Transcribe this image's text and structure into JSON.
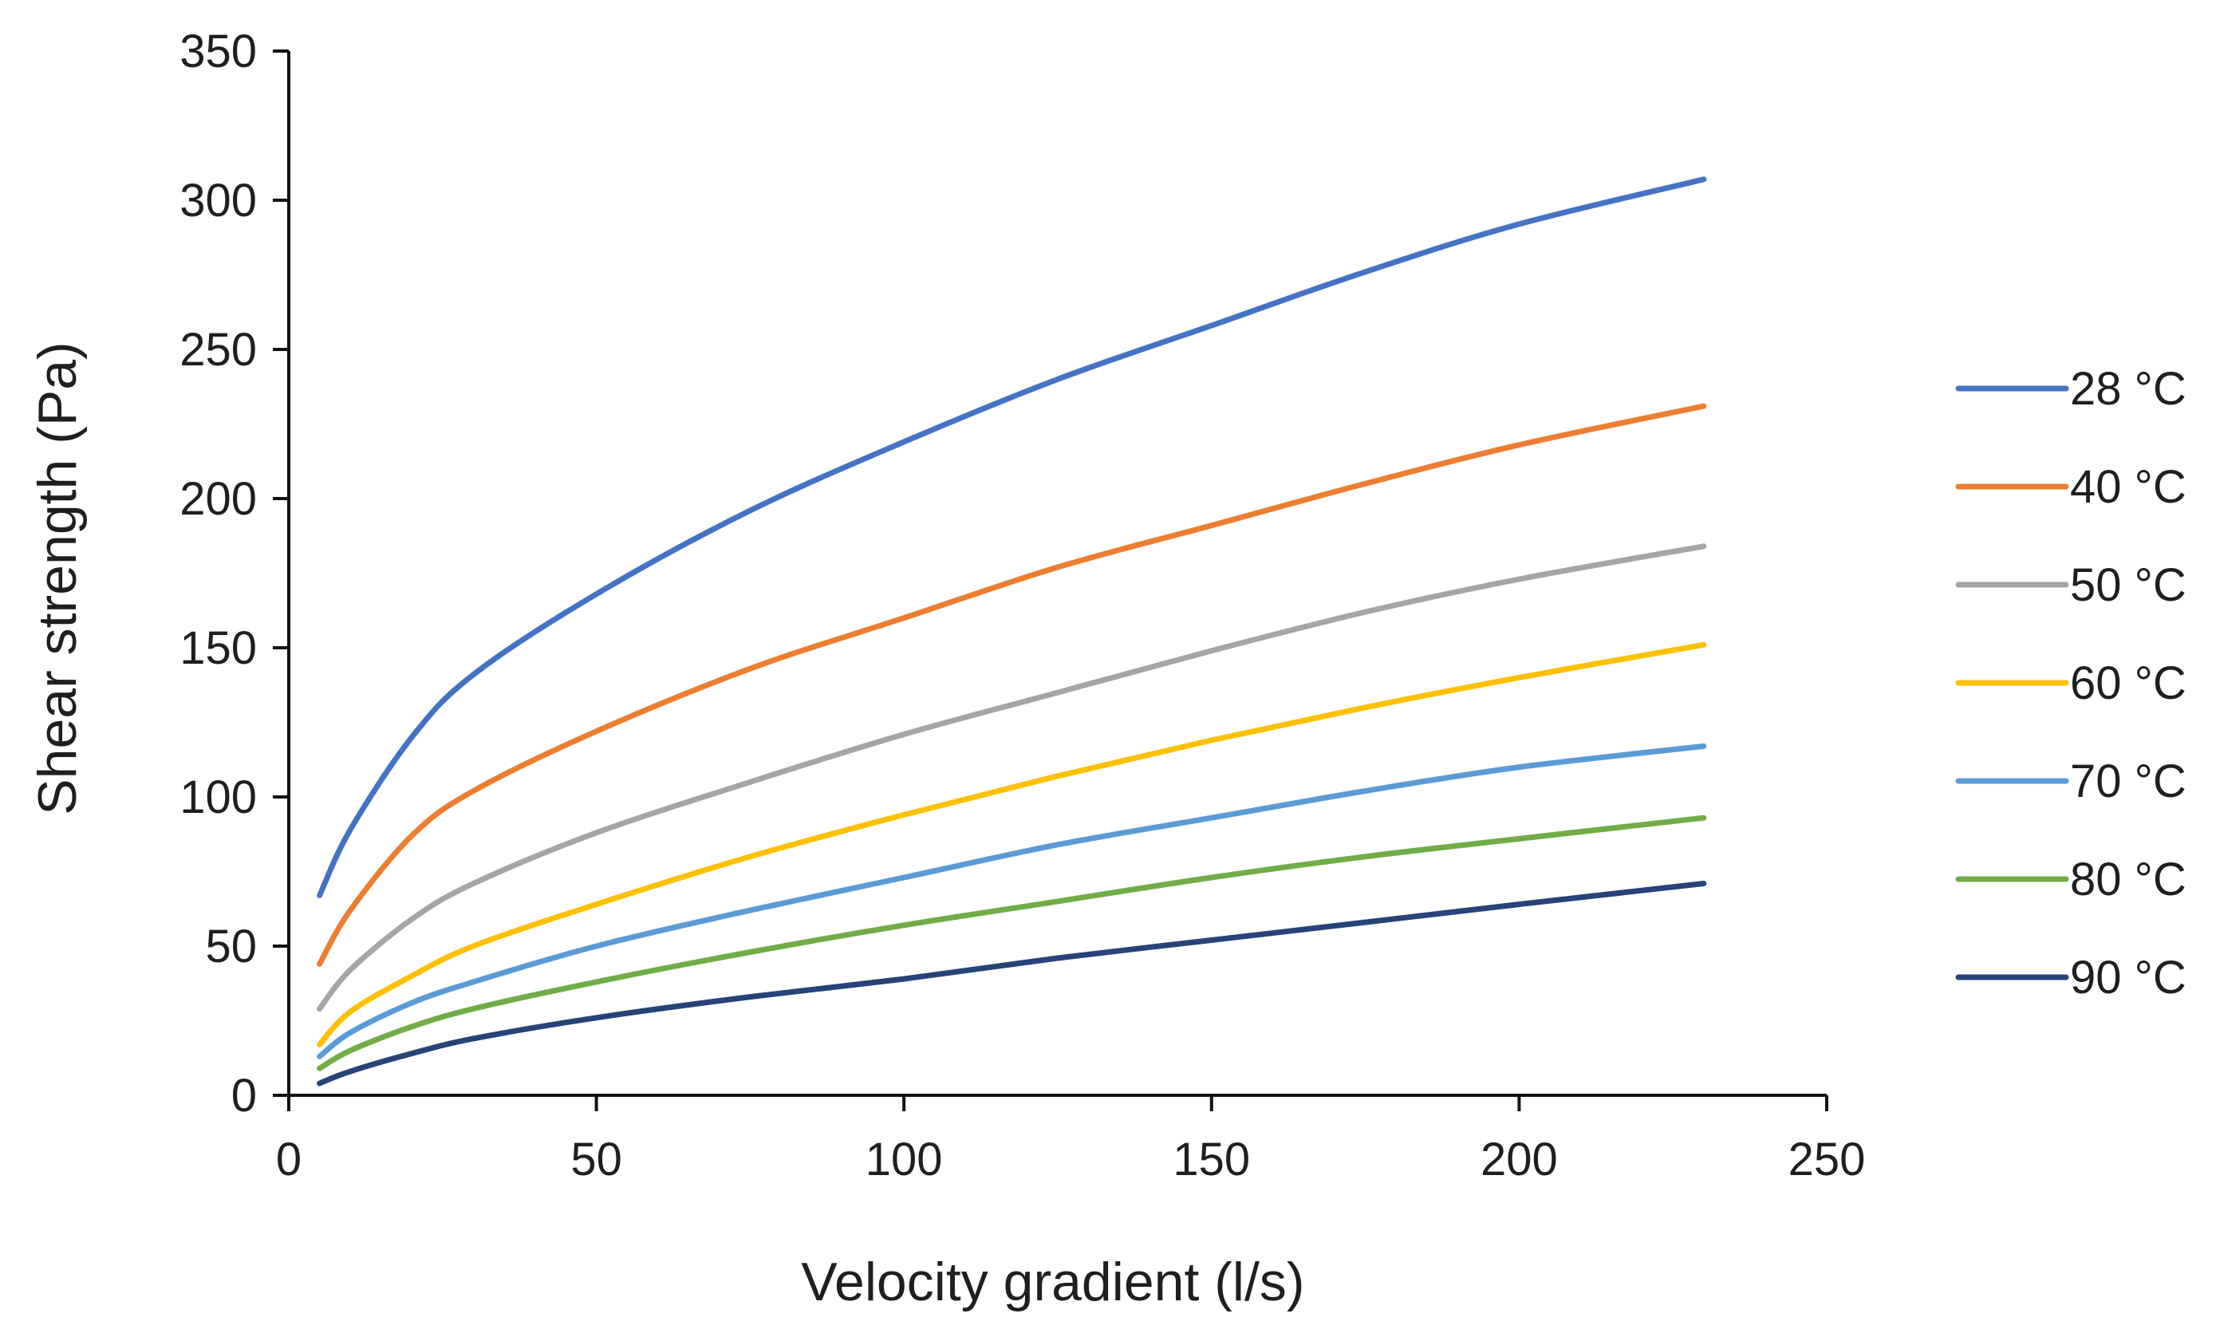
{
  "chart_data": {
    "type": "line",
    "title": "",
    "xlabel": "Velocity gradient (l/s)",
    "ylabel": "Shear strength (Pa)",
    "xlim": [
      0,
      250
    ],
    "ylim": [
      0,
      350
    ],
    "xticks": [
      0,
      50,
      100,
      150,
      200,
      250
    ],
    "yticks": [
      0,
      50,
      100,
      150,
      200,
      250,
      300,
      350
    ],
    "grid": false,
    "legend_position": "right",
    "x": [
      5,
      10,
      20,
      30,
      50,
      75,
      100,
      125,
      150,
      175,
      200,
      230
    ],
    "series": [
      {
        "name": "28 °C",
        "color": "#4472C4",
        "values": [
          67,
          89,
          120,
          141,
          168,
          196,
          219,
          240,
          258,
          276,
          292,
          307
        ]
      },
      {
        "name": "40 °C",
        "color": "#ED7D31",
        "values": [
          44,
          62,
          87,
          102,
          122,
          143,
          160,
          177,
          191,
          205,
          218,
          231
        ]
      },
      {
        "name": "50 °C",
        "color": "#A5A5A5",
        "values": [
          29,
          42,
          59,
          71,
          88,
          105,
          121,
          135,
          149,
          162,
          173,
          184
        ]
      },
      {
        "name": "60 °C",
        "color": "#FFC000",
        "values": [
          17,
          28,
          40,
          50,
          64,
          80,
          94,
          107,
          119,
          130,
          140,
          151
        ]
      },
      {
        "name": "70 °C",
        "color": "#5B9BD5",
        "values": [
          13,
          21,
          31,
          38,
          50,
          62,
          73,
          84,
          93,
          102,
          110,
          117
        ]
      },
      {
        "name": "80 °C",
        "color": "#70AD47",
        "values": [
          9,
          15,
          23,
          29,
          38,
          48,
          57,
          65,
          73,
          80,
          86,
          93
        ]
      },
      {
        "name": "90 °C",
        "color": "#264478",
        "values": [
          4,
          8,
          14,
          19,
          26,
          33,
          39,
          46,
          52,
          58,
          64,
          71
        ]
      }
    ]
  }
}
